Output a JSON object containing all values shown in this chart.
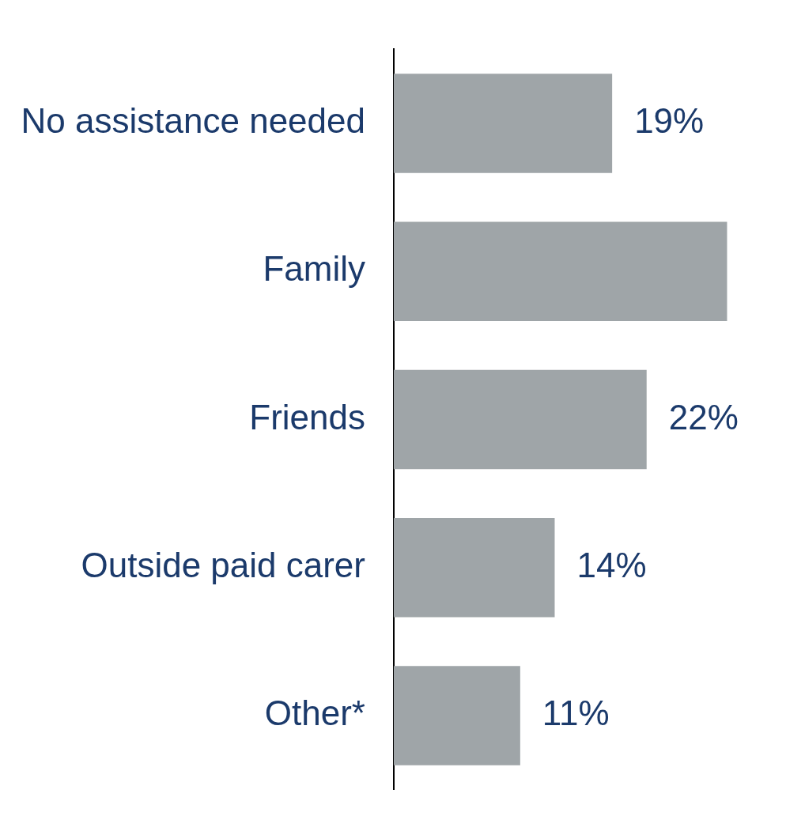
{
  "chart_data": {
    "type": "bar",
    "orientation": "horizontal",
    "categories": [
      "No assistance needed",
      "Family",
      "Friends",
      "Outside paid carer",
      "Other*"
    ],
    "values": [
      19,
      29,
      22,
      14,
      11
    ],
    "value_labels": [
      "19%",
      null,
      "22%",
      "14%",
      "11%"
    ],
    "color": "#9fa5a8",
    "tick_labels": "y",
    "legend": false
  }
}
